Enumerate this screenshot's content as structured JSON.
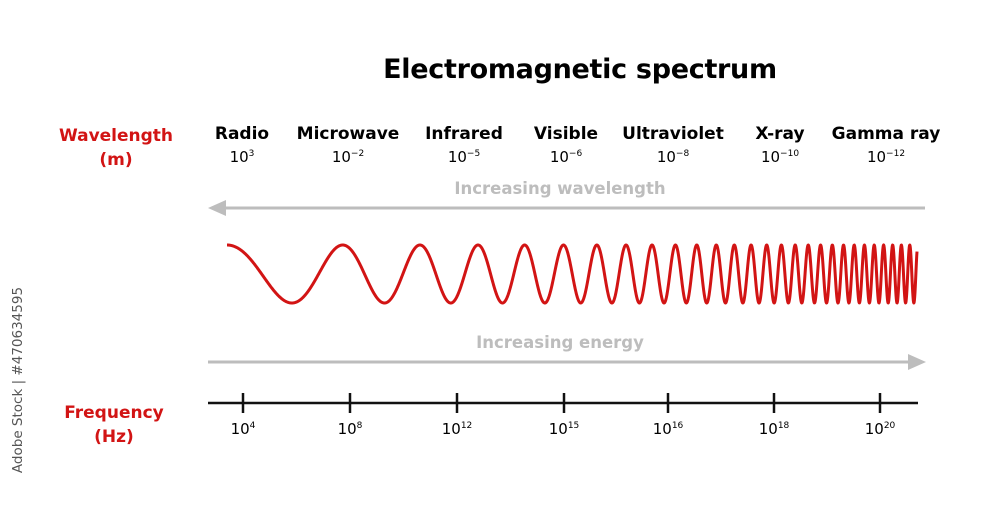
{
  "title": "Electromagnetic spectrum",
  "wavelength_label": {
    "line1": "Wavelength",
    "line2": "(m)"
  },
  "frequency_label": {
    "line1": "Frequency",
    "line2": "(Hz)"
  },
  "bands": [
    {
      "name": "Radio",
      "base": "10",
      "exp": "3"
    },
    {
      "name": "Microwave",
      "base": "10",
      "exp": "−2"
    },
    {
      "name": "Infrared",
      "base": "10",
      "exp": "−5"
    },
    {
      "name": "Visible",
      "base": "10",
      "exp": "−6"
    },
    {
      "name": "Ultraviolet",
      "base": "10",
      "exp": "−8"
    },
    {
      "name": "X-ray",
      "base": "10",
      "exp": "−10"
    },
    {
      "name": "Gamma ray",
      "base": "10",
      "exp": "−12"
    }
  ],
  "arrows": {
    "wavelength": "Increasing wavelength",
    "energy": "Increasing energy"
  },
  "frequencies": [
    {
      "base": "10",
      "exp": "4"
    },
    {
      "base": "10",
      "exp": "8"
    },
    {
      "base": "10",
      "exp": "12"
    },
    {
      "base": "10",
      "exp": "15"
    },
    {
      "base": "10",
      "exp": "16"
    },
    {
      "base": "10",
      "exp": "18"
    },
    {
      "base": "10",
      "exp": "20"
    }
  ],
  "colors": {
    "wave": "#d21414",
    "label_red": "#d21414",
    "arrow_gray": "#bdbdbd",
    "axis": "#111111"
  },
  "watermark": "Adobe Stock | #470634595"
}
